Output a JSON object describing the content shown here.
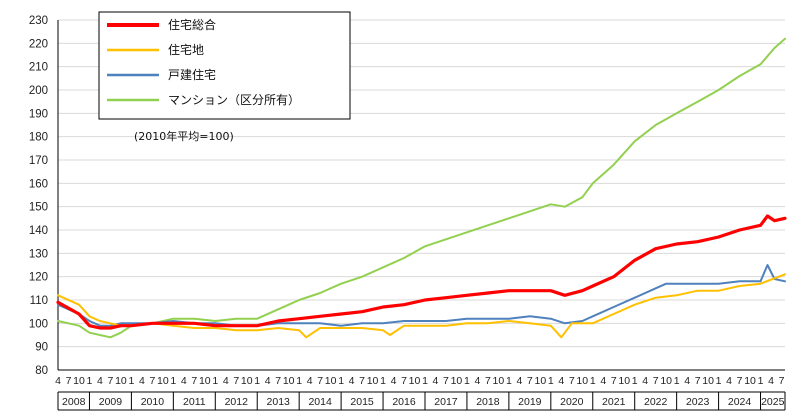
{
  "chart_data": {
    "type": "line",
    "title": "",
    "xlabel": "",
    "ylabel": "",
    "ylim": [
      80,
      230
    ],
    "yticks": [
      80,
      90,
      100,
      110,
      120,
      130,
      140,
      150,
      160,
      170,
      180,
      190,
      200,
      210,
      220,
      230
    ],
    "x_range": [
      "2008-04",
      "2025-08"
    ],
    "month_tick_labels": [
      "4",
      "7",
      "10",
      "1"
    ],
    "years": [
      "2008",
      "2009",
      "2010",
      "2011",
      "2012",
      "2013",
      "2014",
      "2015",
      "2016",
      "2017",
      "2018",
      "2019",
      "2020",
      "2021",
      "2022",
      "2023",
      "2024",
      "2025"
    ],
    "last_year_month_labels": [
      "4",
      "7"
    ],
    "note": "(2010年平均=100)",
    "legend_position": "top-left",
    "grid": "horizontal",
    "colors": {
      "total": "#ff0000",
      "land": "#ffc000",
      "detached": "#4f81bd",
      "condo": "#92d050"
    },
    "series": [
      {
        "key": "total",
        "name": "住宅総合",
        "points": [
          [
            "2008-04",
            109
          ],
          [
            "2008-10",
            104
          ],
          [
            "2009-01",
            99
          ],
          [
            "2009-04",
            98
          ],
          [
            "2009-07",
            98
          ],
          [
            "2009-10",
            99
          ],
          [
            "2010-01",
            99
          ],
          [
            "2010-07",
            100
          ],
          [
            "2011-01",
            100
          ],
          [
            "2011-07",
            100
          ],
          [
            "2012-01",
            99
          ],
          [
            "2012-07",
            99
          ],
          [
            "2013-01",
            99
          ],
          [
            "2013-07",
            101
          ],
          [
            "2014-01",
            102
          ],
          [
            "2014-07",
            103
          ],
          [
            "2015-01",
            104
          ],
          [
            "2015-07",
            105
          ],
          [
            "2016-01",
            107
          ],
          [
            "2016-07",
            108
          ],
          [
            "2017-01",
            110
          ],
          [
            "2017-07",
            111
          ],
          [
            "2018-01",
            112
          ],
          [
            "2018-07",
            113
          ],
          [
            "2019-01",
            114
          ],
          [
            "2019-07",
            114
          ],
          [
            "2020-01",
            114
          ],
          [
            "2020-05",
            112
          ],
          [
            "2020-10",
            114
          ],
          [
            "2021-01",
            116
          ],
          [
            "2021-07",
            120
          ],
          [
            "2022-01",
            127
          ],
          [
            "2022-07",
            132
          ],
          [
            "2023-01",
            134
          ],
          [
            "2023-07",
            135
          ],
          [
            "2024-01",
            137
          ],
          [
            "2024-07",
            140
          ],
          [
            "2025-01",
            142
          ],
          [
            "2025-03",
            146
          ],
          [
            "2025-05",
            144
          ],
          [
            "2025-08",
            145
          ]
        ]
      },
      {
        "key": "land",
        "name": "住宅地",
        "points": [
          [
            "2008-04",
            112
          ],
          [
            "2008-10",
            108
          ],
          [
            "2009-01",
            103
          ],
          [
            "2009-04",
            101
          ],
          [
            "2009-07",
            100
          ],
          [
            "2009-10",
            99
          ],
          [
            "2010-01",
            99
          ],
          [
            "2010-07",
            100
          ],
          [
            "2011-01",
            99
          ],
          [
            "2011-07",
            98
          ],
          [
            "2012-01",
            98
          ],
          [
            "2012-07",
            97
          ],
          [
            "2013-01",
            97
          ],
          [
            "2013-07",
            98
          ],
          [
            "2014-01",
            97
          ],
          [
            "2014-03",
            94
          ],
          [
            "2014-07",
            98
          ],
          [
            "2015-01",
            98
          ],
          [
            "2015-07",
            98
          ],
          [
            "2016-01",
            97
          ],
          [
            "2016-03",
            95
          ],
          [
            "2016-07",
            99
          ],
          [
            "2017-01",
            99
          ],
          [
            "2017-07",
            99
          ],
          [
            "2018-01",
            100
          ],
          [
            "2018-07",
            100
          ],
          [
            "2019-01",
            101
          ],
          [
            "2019-07",
            100
          ],
          [
            "2020-01",
            99
          ],
          [
            "2020-04",
            94
          ],
          [
            "2020-07",
            100
          ],
          [
            "2021-01",
            100
          ],
          [
            "2021-07",
            104
          ],
          [
            "2022-01",
            108
          ],
          [
            "2022-07",
            111
          ],
          [
            "2023-01",
            112
          ],
          [
            "2023-07",
            114
          ],
          [
            "2024-01",
            114
          ],
          [
            "2024-07",
            116
          ],
          [
            "2025-01",
            117
          ],
          [
            "2025-08",
            121
          ]
        ]
      },
      {
        "key": "detached",
        "name": "戸建住宅",
        "points": [
          [
            "2008-04",
            108
          ],
          [
            "2008-10",
            104
          ],
          [
            "2009-01",
            101
          ],
          [
            "2009-04",
            99
          ],
          [
            "2009-07",
            99
          ],
          [
            "2009-10",
            100
          ],
          [
            "2010-01",
            100
          ],
          [
            "2010-07",
            100
          ],
          [
            "2011-01",
            101
          ],
          [
            "2011-07",
            100
          ],
          [
            "2012-01",
            100
          ],
          [
            "2012-07",
            99
          ],
          [
            "2013-01",
            99
          ],
          [
            "2013-07",
            100
          ],
          [
            "2014-01",
            100
          ],
          [
            "2014-07",
            100
          ],
          [
            "2015-01",
            99
          ],
          [
            "2015-07",
            100
          ],
          [
            "2016-01",
            100
          ],
          [
            "2016-07",
            101
          ],
          [
            "2017-01",
            101
          ],
          [
            "2017-07",
            101
          ],
          [
            "2018-01",
            102
          ],
          [
            "2018-07",
            102
          ],
          [
            "2019-01",
            102
          ],
          [
            "2019-07",
            103
          ],
          [
            "2020-01",
            102
          ],
          [
            "2020-05",
            100
          ],
          [
            "2020-10",
            101
          ],
          [
            "2021-01",
            103
          ],
          [
            "2021-07",
            107
          ],
          [
            "2022-01",
            111
          ],
          [
            "2022-07",
            115
          ],
          [
            "2022-10",
            117
          ],
          [
            "2023-01",
            117
          ],
          [
            "2023-07",
            117
          ],
          [
            "2024-01",
            117
          ],
          [
            "2024-07",
            118
          ],
          [
            "2025-01",
            118
          ],
          [
            "2025-03",
            125
          ],
          [
            "2025-05",
            119
          ],
          [
            "2025-08",
            118
          ]
        ]
      },
      {
        "key": "condo",
        "name": "マンション（区分所有）",
        "points": [
          [
            "2008-04",
            101
          ],
          [
            "2008-10",
            99
          ],
          [
            "2009-01",
            96
          ],
          [
            "2009-04",
            95
          ],
          [
            "2009-07",
            94
          ],
          [
            "2009-10",
            96
          ],
          [
            "2010-01",
            99
          ],
          [
            "2010-07",
            100
          ],
          [
            "2011-01",
            102
          ],
          [
            "2011-07",
            102
          ],
          [
            "2012-01",
            101
          ],
          [
            "2012-07",
            102
          ],
          [
            "2013-01",
            102
          ],
          [
            "2013-07",
            106
          ],
          [
            "2014-01",
            110
          ],
          [
            "2014-07",
            113
          ],
          [
            "2015-01",
            117
          ],
          [
            "2015-07",
            120
          ],
          [
            "2016-01",
            124
          ],
          [
            "2016-07",
            128
          ],
          [
            "2017-01",
            133
          ],
          [
            "2017-07",
            136
          ],
          [
            "2018-01",
            139
          ],
          [
            "2018-07",
            142
          ],
          [
            "2019-01",
            145
          ],
          [
            "2019-07",
            148
          ],
          [
            "2020-01",
            151
          ],
          [
            "2020-05",
            150
          ],
          [
            "2020-10",
            154
          ],
          [
            "2021-01",
            160
          ],
          [
            "2021-07",
            168
          ],
          [
            "2022-01",
            178
          ],
          [
            "2022-07",
            185
          ],
          [
            "2023-01",
            190
          ],
          [
            "2023-07",
            195
          ],
          [
            "2024-01",
            200
          ],
          [
            "2024-07",
            206
          ],
          [
            "2025-01",
            211
          ],
          [
            "2025-05",
            218
          ],
          [
            "2025-08",
            222
          ]
        ]
      }
    ]
  }
}
